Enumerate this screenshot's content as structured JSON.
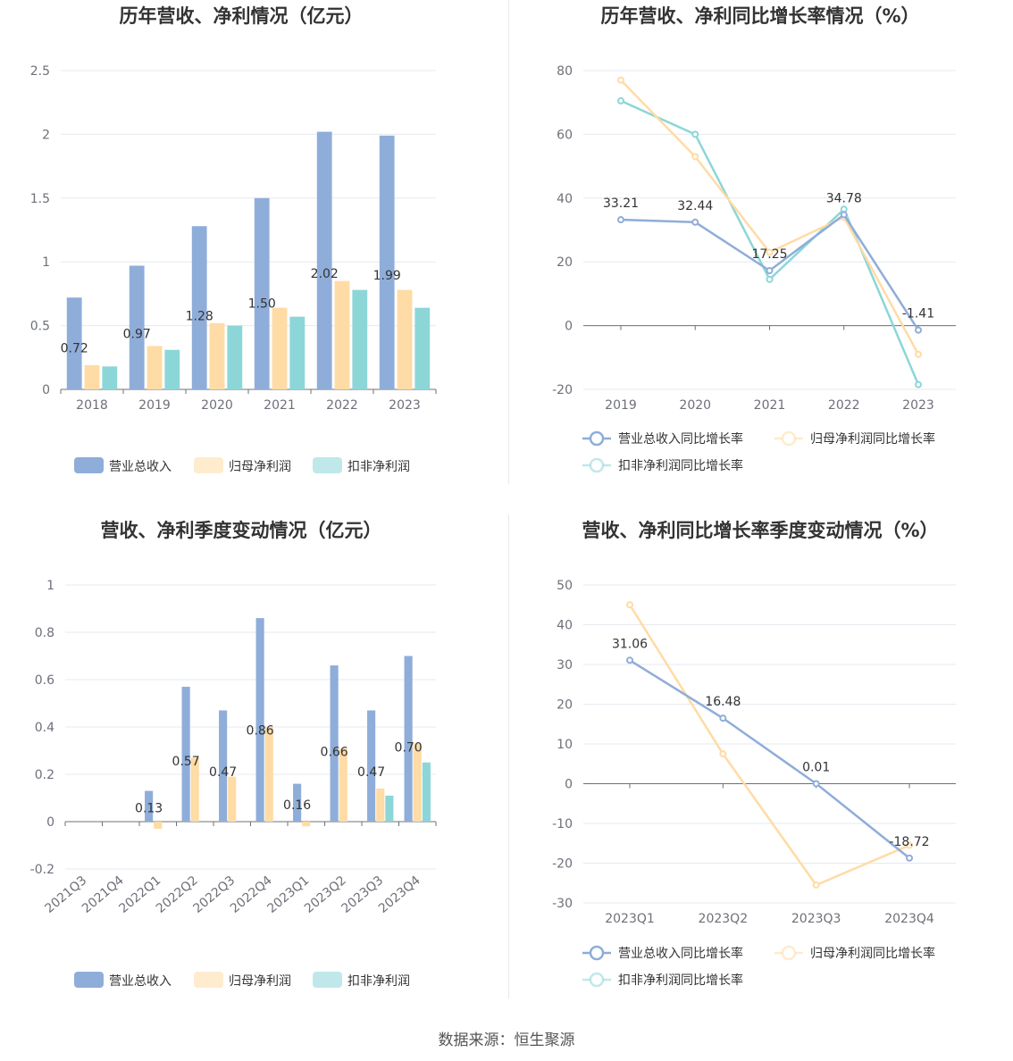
{
  "source": "数据来源：恒生聚源",
  "colors": {
    "revenue": "#8fadd9",
    "profit": "#ffdba5",
    "deducted": "#8cd6d8"
  },
  "legend": {
    "bar": [
      "营业总收入",
      "归母净利润",
      "扣非净利润"
    ],
    "line": [
      "营业总收入同比增长率",
      "归母净利润同比增长率",
      "扣非净利润同比增长率"
    ]
  },
  "chart_data": [
    {
      "type": "bar",
      "title": "历年营收、净利情况（亿元）",
      "categories": [
        "2018",
        "2019",
        "2020",
        "2021",
        "2022",
        "2023"
      ],
      "ylim": [
        0,
        2.5
      ],
      "yticks": [
        "0",
        "0.5",
        "1",
        "1.5",
        "2",
        "2.5"
      ],
      "legend_position": "bottom",
      "series": [
        {
          "name": "营业总收入",
          "values": [
            0.72,
            0.97,
            1.28,
            1.5,
            2.02,
            1.99
          ],
          "labels": [
            "0.72",
            "0.97",
            "1.28",
            "1.50",
            "2.02",
            "1.99"
          ]
        },
        {
          "name": "归母净利润",
          "values": [
            0.19,
            0.34,
            0.52,
            0.64,
            0.85,
            0.78
          ]
        },
        {
          "name": "扣非净利润",
          "values": [
            0.18,
            0.31,
            0.5,
            0.57,
            0.78,
            0.64
          ]
        }
      ]
    },
    {
      "type": "line",
      "title": "历年营收、净利同比增长率情况（%）",
      "categories": [
        "2019",
        "2020",
        "2021",
        "2022",
        "2023"
      ],
      "ylim": [
        -20,
        80
      ],
      "yticks": [
        "-20",
        "0",
        "20",
        "40",
        "60",
        "80"
      ],
      "legend_position": "bottom",
      "series": [
        {
          "name": "营业总收入同比增长率",
          "values": [
            33.21,
            32.44,
            17.25,
            34.78,
            -1.41
          ],
          "labels": [
            "33.21",
            "32.44",
            "17.25",
            "34.78",
            "-1.41"
          ]
        },
        {
          "name": "归母净利润同比增长率",
          "values": [
            77,
            53,
            23,
            34,
            -9
          ]
        },
        {
          "name": "扣非净利润同比增长率",
          "values": [
            70.5,
            60,
            14.5,
            36.5,
            -18.5
          ]
        }
      ]
    },
    {
      "type": "bar",
      "title": "营收、净利季度变动情况（亿元）",
      "categories": [
        "2021Q3",
        "2021Q4",
        "2022Q1",
        "2022Q2",
        "2022Q3",
        "2022Q4",
        "2023Q1",
        "2023Q2",
        "2023Q3",
        "2023Q4"
      ],
      "ylim": [
        -0.2,
        1
      ],
      "yticks": [
        "-0.2",
        "0",
        "0.2",
        "0.4",
        "0.6",
        "0.8",
        "1"
      ],
      "legend_position": "bottom",
      "series": [
        {
          "name": "营业总收入",
          "values": [
            null,
            null,
            0.13,
            0.57,
            0.47,
            0.86,
            0.16,
            0.66,
            0.47,
            0.7
          ],
          "labels": [
            "",
            "",
            "0.13",
            "0.57",
            "0.47",
            "0.86",
            "0.16",
            "0.66",
            "0.47",
            "0.70"
          ]
        },
        {
          "name": "归母净利润",
          "values": [
            null,
            null,
            -0.03,
            0.27,
            0.19,
            0.4,
            -0.02,
            0.31,
            0.14,
            0.33
          ]
        },
        {
          "name": "扣非净利润",
          "values": [
            null,
            null,
            null,
            null,
            null,
            null,
            null,
            null,
            0.11,
            0.25
          ]
        }
      ]
    },
    {
      "type": "line",
      "title": "营收、净利同比增长率季度变动情况（%）",
      "categories": [
        "2023Q1",
        "2023Q2",
        "2023Q3",
        "2023Q4"
      ],
      "ylim": [
        -30,
        50
      ],
      "yticks": [
        "-30",
        "-20",
        "-10",
        "0",
        "10",
        "20",
        "30",
        "40",
        "50"
      ],
      "legend_position": "bottom",
      "series": [
        {
          "name": "营业总收入同比增长率",
          "values": [
            31.06,
            16.48,
            0.01,
            -18.72
          ],
          "labels": [
            "31.06",
            "16.48",
            "0.01",
            "-18.72"
          ]
        },
        {
          "name": "归母净利润同比增长率",
          "values": [
            45,
            7.5,
            -25.5,
            -15.5
          ]
        },
        {
          "name": "扣非净利润同比增长率",
          "values": [
            null,
            null,
            null,
            null
          ]
        }
      ]
    }
  ]
}
